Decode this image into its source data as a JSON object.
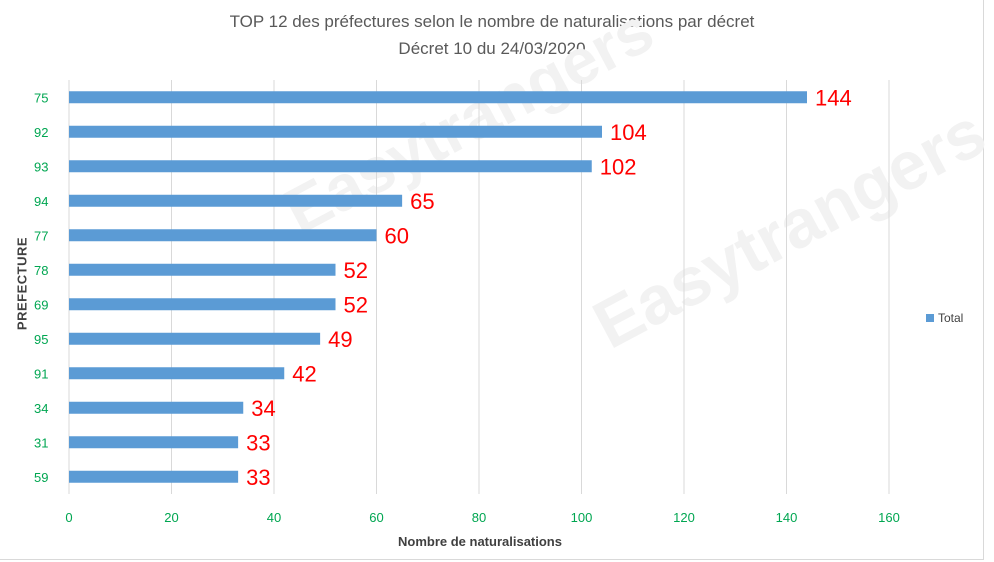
{
  "chart_data": {
    "type": "bar",
    "orientation": "horizontal",
    "title": "TOP 12 des préfectures selon le nombre de naturalisations par décret",
    "subtitle": "Décret 10 du 24/03/2020",
    "xlabel": "Nombre de naturalisations",
    "ylabel": "PREFECTURE",
    "categories": [
      "75",
      "92",
      "93",
      "94",
      "77",
      "78",
      "69",
      "95",
      "91",
      "34",
      "31",
      "59"
    ],
    "series": [
      {
        "name": "Total",
        "color": "#5b9bd5",
        "values": [
          144,
          104,
          102,
          65,
          60,
          52,
          52,
          49,
          42,
          34,
          33,
          33
        ]
      }
    ],
    "xlim": [
      0,
      160
    ],
    "xticks": [
      0,
      20,
      40,
      60,
      80,
      100,
      120,
      140,
      160
    ],
    "grid": true,
    "legend": "right",
    "tick_label_color": "#00a651",
    "data_label_color": "#ff0000",
    "watermark": "Easytrangers"
  }
}
